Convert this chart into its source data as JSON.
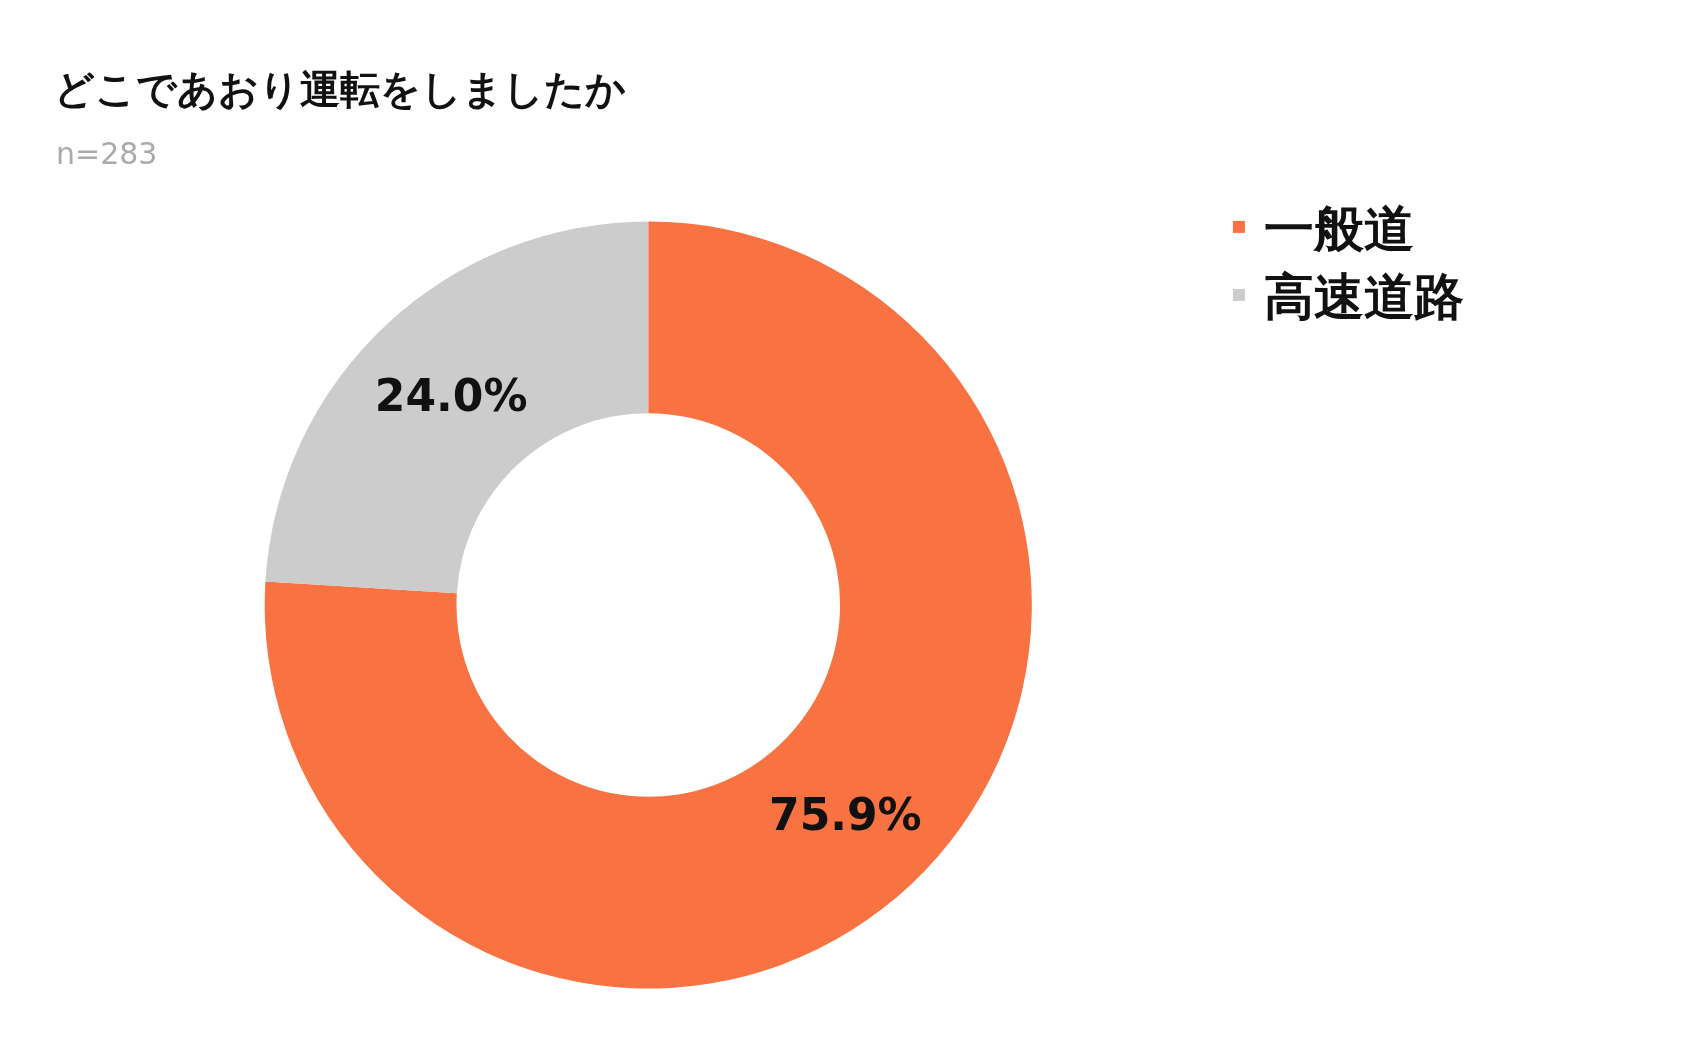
{
  "chart_data": {
    "type": "donut",
    "title": "どこであおり運転をしましたか",
    "subtitle": "n=283",
    "categories": [
      "一般道",
      "高速道路"
    ],
    "values": [
      75.9,
      24.0
    ],
    "value_labels": [
      "75.9%",
      "24.0%"
    ],
    "colors": [
      "#f97241",
      "#cccccc"
    ],
    "legend": "top right"
  }
}
